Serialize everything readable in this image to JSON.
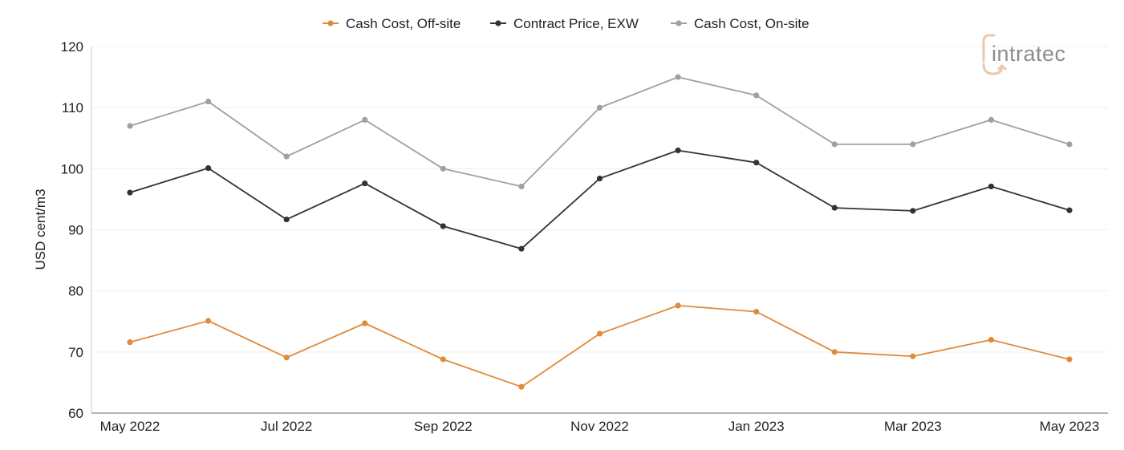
{
  "chart_data": {
    "type": "line",
    "title": "",
    "xlabel": "",
    "ylabel": "USD cent/m3",
    "categories": [
      "May 2022",
      "Jun 2022",
      "Jul 2022",
      "Aug 2022",
      "Sep 2022",
      "Oct 2022",
      "Nov 2022",
      "Dec 2022",
      "Jan 2023",
      "Feb 2023",
      "Mar 2023",
      "Apr 2023",
      "May 2023"
    ],
    "x_tick_labels": [
      "May 2022",
      "",
      "Jul 2022",
      "",
      "Sep 2022",
      "",
      "Nov 2022",
      "",
      "Jan 2023",
      "",
      "Mar 2023",
      "",
      "May 2023"
    ],
    "ylim": [
      60,
      120
    ],
    "y_ticks": [
      60,
      70,
      80,
      90,
      100,
      110,
      120
    ],
    "grid": true,
    "legend_position": "top-center",
    "series": [
      {
        "name": "Cash Cost, Off-site",
        "color": "#e08a3c",
        "values": [
          71.6,
          75.1,
          69.1,
          74.7,
          68.8,
          64.3,
          73.0,
          77.6,
          76.6,
          70.0,
          69.3,
          72.0,
          68.8
        ]
      },
      {
        "name": "Contract Price, EXW",
        "color": "#333333",
        "values": [
          96.1,
          100.1,
          91.7,
          97.6,
          90.6,
          86.9,
          98.4,
          103.0,
          101.0,
          93.6,
          93.1,
          97.1,
          93.2
        ]
      },
      {
        "name": "Cash Cost, On-site",
        "color": "#a0a0a0",
        "values": [
          107.0,
          111.0,
          102.0,
          108.0,
          100.0,
          97.1,
          110.0,
          115.0,
          112.0,
          104.0,
          104.0,
          108.0,
          104.0
        ]
      }
    ]
  },
  "logo": {
    "text": "intratec",
    "accent_color": "#e7c9ad",
    "text_color": "#8c8c8c"
  }
}
